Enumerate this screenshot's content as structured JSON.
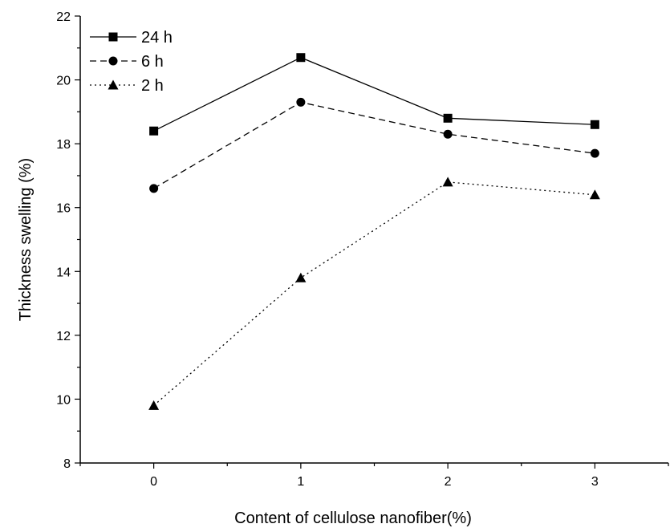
{
  "chart_data": {
    "type": "line",
    "title": "",
    "xlabel": "Content of cellulose nanofiber(%)",
    "ylabel": "Thickness swelling (%)",
    "x": [
      0,
      1,
      2,
      3
    ],
    "xlim": [
      -0.5,
      3.5
    ],
    "ylim": [
      8,
      22
    ],
    "x_ticks": [
      "0",
      "1",
      "2",
      "3"
    ],
    "y_ticks": [
      "8",
      "10",
      "12",
      "14",
      "16",
      "18",
      "20",
      "22"
    ],
    "grid": false,
    "legend_position": "top-left",
    "series": [
      {
        "name": "24 h",
        "values": [
          18.4,
          20.7,
          18.8,
          18.6
        ],
        "marker": "square",
        "line_style": "solid"
      },
      {
        "name": "6 h",
        "values": [
          16.6,
          19.3,
          18.3,
          17.7
        ],
        "marker": "circle",
        "line_style": "dashed"
      },
      {
        "name": "2 h",
        "values": [
          9.8,
          13.8,
          16.8,
          16.4
        ],
        "marker": "triangle",
        "line_style": "dotted"
      }
    ],
    "colors": {
      "foreground": "#000000",
      "background": "#ffffff"
    }
  }
}
